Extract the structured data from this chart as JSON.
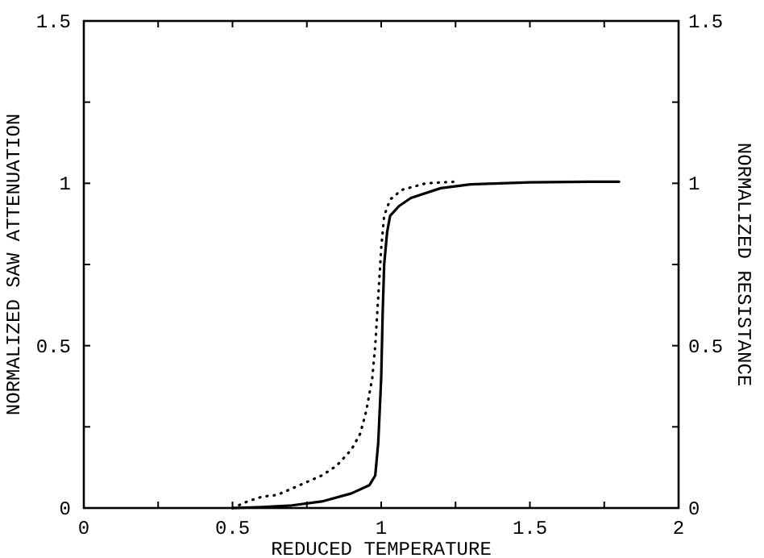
{
  "chart_data": {
    "type": "line",
    "xlabel": "REDUCED TEMPERATURE",
    "ylabel": "NORMALIZED SAW ATTENUATION",
    "y2label": "NORMALIZED RESISTANCE",
    "xlim": [
      0,
      2
    ],
    "ylim": [
      0,
      1.5
    ],
    "y2lim": [
      0,
      1.5
    ],
    "xticks": [
      0,
      {
        "value": 0.25,
        "label": null
      },
      0.5,
      {
        "value": 0.75,
        "label": null
      },
      1,
      {
        "value": 1.25,
        "label": null
      },
      1.5,
      {
        "value": 1.75,
        "label": null
      },
      2
    ],
    "yticks": [
      0,
      {
        "value": 0.25,
        "label": null
      },
      0.5,
      {
        "value": 0.75,
        "label": null
      },
      1,
      {
        "value": 1.25,
        "label": null
      },
      1.5
    ],
    "y2ticks": [
      0,
      {
        "value": 0.25,
        "label": null
      },
      0.5,
      {
        "value": 0.75,
        "label": null
      },
      1,
      {
        "value": 1.25,
        "label": null
      },
      1.5
    ],
    "grid": false,
    "marker": "none",
    "series": [
      {
        "color": "#000000",
        "line_style": "solid",
        "x": [
          0.5,
          0.6,
          0.7,
          0.8,
          0.9,
          0.96,
          0.98,
          0.99,
          1.0,
          1.005,
          1.01,
          1.02,
          1.03,
          1.06,
          1.1,
          1.2,
          1.3,
          1.5,
          1.7,
          1.8
        ],
        "values": [
          0,
          0.003,
          0.008,
          0.02,
          0.045,
          0.07,
          0.1,
          0.2,
          0.4,
          0.6,
          0.75,
          0.85,
          0.9,
          0.93,
          0.955,
          0.985,
          0.997,
          1.003,
          1.005,
          1.005
        ]
      },
      {
        "color": "#000000",
        "line_style": "dotted",
        "x": [
          0.5,
          0.55,
          0.6,
          0.65,
          0.7,
          0.75,
          0.8,
          0.85,
          0.9,
          0.93,
          0.95,
          0.97,
          0.98,
          0.99,
          1.0,
          1.01,
          1.03,
          1.07,
          1.15,
          1.25
        ],
        "values": [
          0,
          0.02,
          0.035,
          0.04,
          0.06,
          0.08,
          0.1,
          0.13,
          0.18,
          0.23,
          0.3,
          0.4,
          0.5,
          0.65,
          0.8,
          0.9,
          0.95,
          0.98,
          1.0,
          1.005
        ]
      }
    ]
  }
}
